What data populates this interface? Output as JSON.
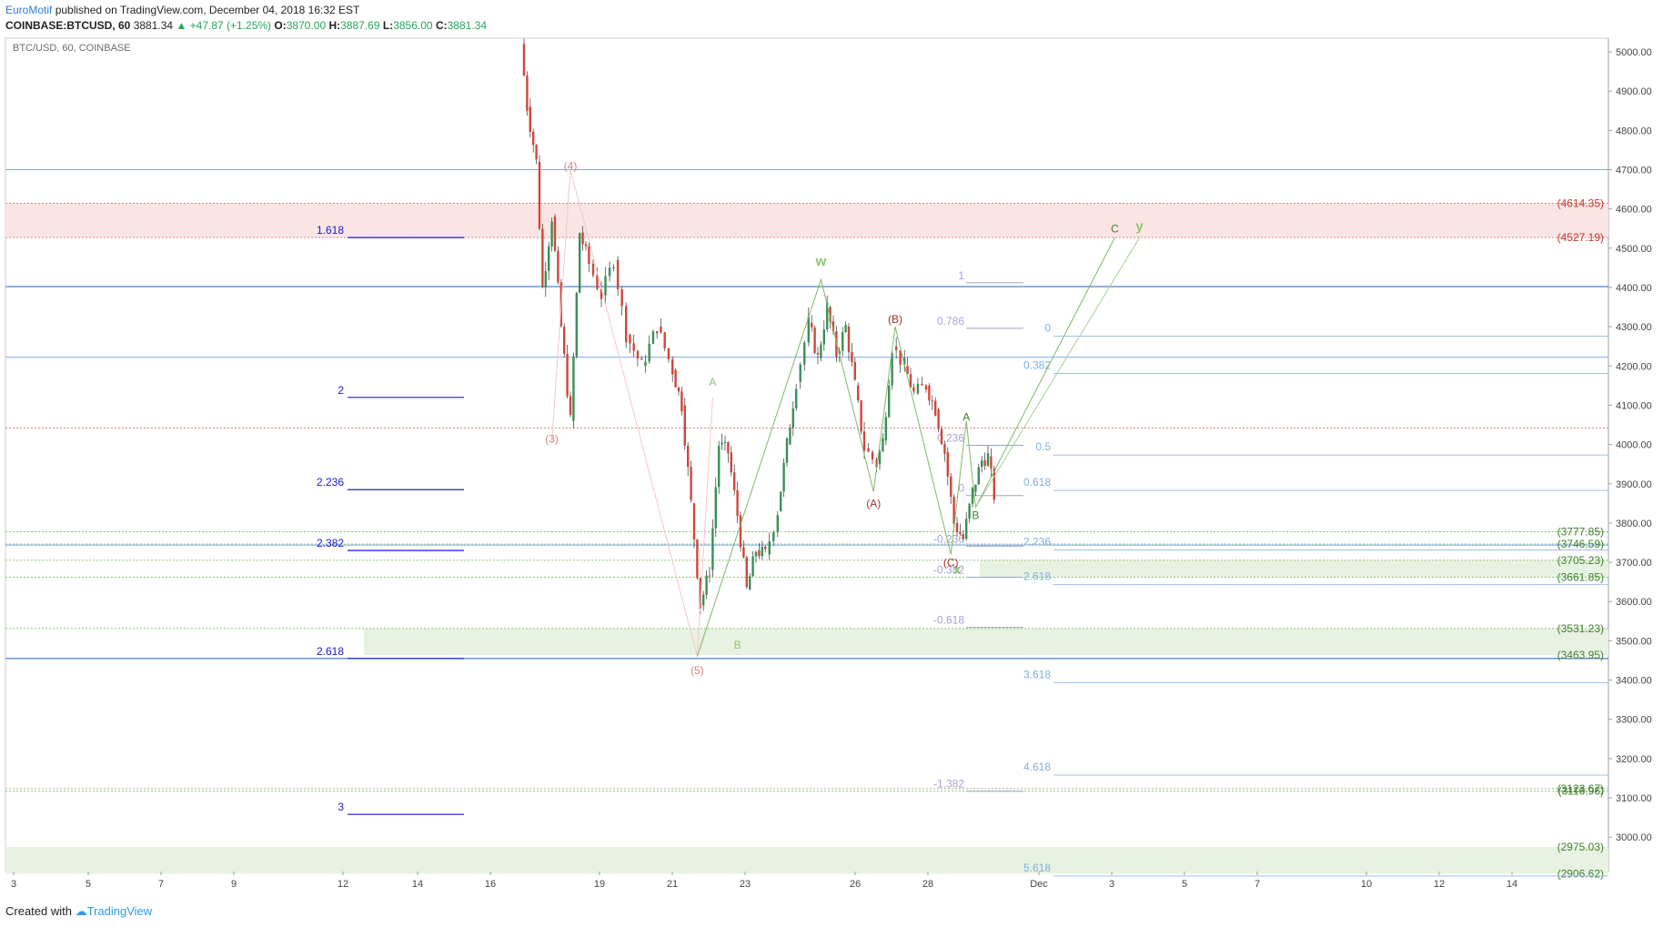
{
  "header": {
    "author": "EuroMotif",
    "published_text": "published on TradingView.com, December 04, 2018 16:32 EST",
    "symbol_interval": "COINBASE:BTCUSD, 60",
    "last": "3881.34",
    "change": "▲ +47.87 (+1.25%)",
    "o_label": "O:",
    "o": "3870.00",
    "h_label": "H:",
    "h": "3887.69",
    "l_label": "L:",
    "l": "3856.00",
    "c_label": "C:",
    "c": "3881.34"
  },
  "chart_title": "BTC/USD, 60, COINBASE",
  "footer": {
    "created_with": "Created with",
    "brand": "TradingView"
  },
  "colors": {
    "candle_up": "#3a8f55",
    "candle_down": "#d1463a",
    "level_blue": "#5b8bd6",
    "fib_ext": "#1a1acf",
    "resistance_zone": "#fbe4e4",
    "support_zone": "#e8f2e2",
    "wave_red": "#d96a6a",
    "wave_green": "#7fb86a"
  },
  "chart_data": {
    "type": "candlestick",
    "x_ticks": [
      "3",
      "5",
      "7",
      "9",
      "12",
      "14",
      "16",
      "19",
      "21",
      "23",
      "26",
      "28",
      "Dec",
      "3",
      "5",
      "7",
      "10",
      "12",
      "14"
    ],
    "y_range": [
      2900,
      5050
    ],
    "y_ticks": [
      "5000.00",
      "4900.00",
      "4800.00",
      "4700.00",
      "4600.00",
      "4500.00",
      "4400.00",
      "4300.00",
      "4200.00",
      "4100.00",
      "4000.00",
      "3900.00",
      "3800.00",
      "3700.00",
      "3600.00",
      "3500.00",
      "3400.00",
      "3300.00",
      "3200.00",
      "3100.00",
      "3000.00"
    ],
    "price_path": [
      [
        19.4,
        5020
      ],
      [
        19.6,
        4860
      ],
      [
        19.9,
        4720
      ],
      [
        20.1,
        4400
      ],
      [
        20.4,
        4580
      ],
      [
        20.7,
        4300
      ],
      [
        21.0,
        4060
      ],
      [
        21.3,
        4540
      ],
      [
        21.6,
        4460
      ],
      [
        22.0,
        4380
      ],
      [
        22.4,
        4470
      ],
      [
        22.8,
        4280
      ],
      [
        23.3,
        4200
      ],
      [
        23.8,
        4300
      ],
      [
        24.3,
        4190
      ],
      [
        24.6,
        4100
      ],
      [
        24.9,
        3850
      ],
      [
        25.2,
        3590
      ],
      [
        25.5,
        3680
      ],
      [
        25.8,
        4000
      ],
      [
        26.1,
        3980
      ],
      [
        26.4,
        3820
      ],
      [
        26.7,
        3630
      ],
      [
        27.0,
        3730
      ],
      [
        27.3,
        3720
      ],
      [
        27.7,
        3830
      ],
      [
        28.0,
        4000
      ],
      [
        28.3,
        4160
      ],
      [
        28.7,
        4310
      ],
      [
        29.0,
        4220
      ],
      [
        29.3,
        4350
      ],
      [
        29.6,
        4230
      ],
      [
        29.9,
        4300
      ],
      [
        30.2,
        4150
      ],
      [
        30.5,
        3990
      ],
      [
        30.9,
        3950
      ],
      [
        31.1,
        4010
      ],
      [
        31.4,
        4250
      ],
      [
        31.8,
        4200
      ],
      [
        32.1,
        4130
      ],
      [
        32.5,
        4150
      ],
      [
        32.8,
        4090
      ],
      [
        33.1,
        3980
      ],
      [
        33.4,
        3800
      ],
      [
        33.7,
        3760
      ],
      [
        34.0,
        3880
      ],
      [
        34.3,
        3960
      ],
      [
        34.5,
        3970
      ],
      [
        34.7,
        3870
      ]
    ],
    "horizontal_levels": [
      4700,
      4402,
      4222,
      3744,
      3455
    ],
    "zones": [
      {
        "label": "(4614.35)",
        "value": 4614.35,
        "kind": "resistance"
      },
      {
        "label": "(4527.19)",
        "value": 4527.19,
        "kind": "resistance"
      },
      {
        "label": "(3777.85)",
        "value": 3777.85,
        "kind": "support"
      },
      {
        "label": "(3746.59)",
        "value": 3746.59,
        "kind": "support"
      },
      {
        "label": "(3705.23)",
        "value": 3705.23,
        "kind": "support"
      },
      {
        "label": "(3661.85)",
        "value": 3661.85,
        "kind": "support"
      },
      {
        "label": "(3531.23)",
        "value": 3531.23,
        "kind": "support"
      },
      {
        "label": "(3463.95)",
        "value": 3463.95,
        "kind": "support"
      },
      {
        "label": "(3123.67)",
        "value": 3123.67,
        "kind": "support"
      },
      {
        "label": "(3116.96)",
        "value": 3116.96,
        "kind": "support"
      },
      {
        "label": "(2975.03)",
        "value": 2975.03,
        "kind": "support"
      },
      {
        "label": "(2906.62)",
        "value": 2906.62,
        "kind": "support"
      }
    ],
    "fib_extension_left": [
      {
        "label": "1.618",
        "value": 4527
      },
      {
        "label": "2",
        "value": 4120
      },
      {
        "label": "2.236",
        "value": 3885
      },
      {
        "label": "2.382",
        "value": 3730
      },
      {
        "label": "2.618",
        "value": 3455
      },
      {
        "label": "3",
        "value": 3058
      }
    ],
    "fib_retracement_mid": [
      {
        "label": "1",
        "value": 4412
      },
      {
        "label": "0.786",
        "value": 4296
      },
      {
        "label": "0.236",
        "value": 3998
      },
      {
        "label": "0",
        "value": 3870
      },
      {
        "label": "-0.236",
        "value": 3741
      },
      {
        "label": "-0.382",
        "value": 3662
      },
      {
        "label": "-0.618",
        "value": 3534
      },
      {
        "label": "-1.382",
        "value": 3117
      }
    ],
    "fib_extension_right": [
      {
        "label": "0",
        "value": 4283
      },
      {
        "label": "0.382",
        "value": 4188
      },
      {
        "label": "0.5",
        "value": 3980
      },
      {
        "label": "0.618",
        "value": 3890
      },
      {
        "label": "2.236",
        "value": 3738
      },
      {
        "label": "2.618",
        "value": 3650
      },
      {
        "label": "3.618",
        "value": 3400
      },
      {
        "label": "4.618",
        "value": 3165
      },
      {
        "label": "5.618",
        "value": 2908
      }
    ],
    "wave_labels": [
      {
        "label": "(4)",
        "x": 21.0,
        "y": 4700,
        "color": "red"
      },
      {
        "label": "(3)",
        "x": 20.4,
        "y": 4005,
        "color": "red"
      },
      {
        "label": "(5)",
        "x": 25.1,
        "y": 3415,
        "color": "red"
      },
      {
        "label": "A",
        "x": 25.6,
        "y": 4150,
        "color": "green"
      },
      {
        "label": "B",
        "x": 26.4,
        "y": 3480,
        "color": "green"
      },
      {
        "label": "w",
        "x": 29.1,
        "y": 4455,
        "color": "green"
      },
      {
        "label": "(B)",
        "x": 31.5,
        "y": 4310,
        "color": "darkred"
      },
      {
        "label": "(A)",
        "x": 30.8,
        "y": 3840,
        "color": "darkred"
      },
      {
        "label": "(C)",
        "x": 33.3,
        "y": 3690,
        "color": "darkred"
      },
      {
        "label": "x",
        "x": 33.5,
        "y": 3670,
        "color": "green"
      },
      {
        "label": "A",
        "x": 33.8,
        "y": 4060,
        "color": "darkgreen"
      },
      {
        "label": "B",
        "x": 34.1,
        "y": 3810,
        "color": "darkgreen"
      },
      {
        "label": "C",
        "x": 38.6,
        "y": 4540,
        "color": "darkgreen"
      },
      {
        "label": "y",
        "x": 39.4,
        "y": 4545,
        "color": "green"
      }
    ]
  }
}
